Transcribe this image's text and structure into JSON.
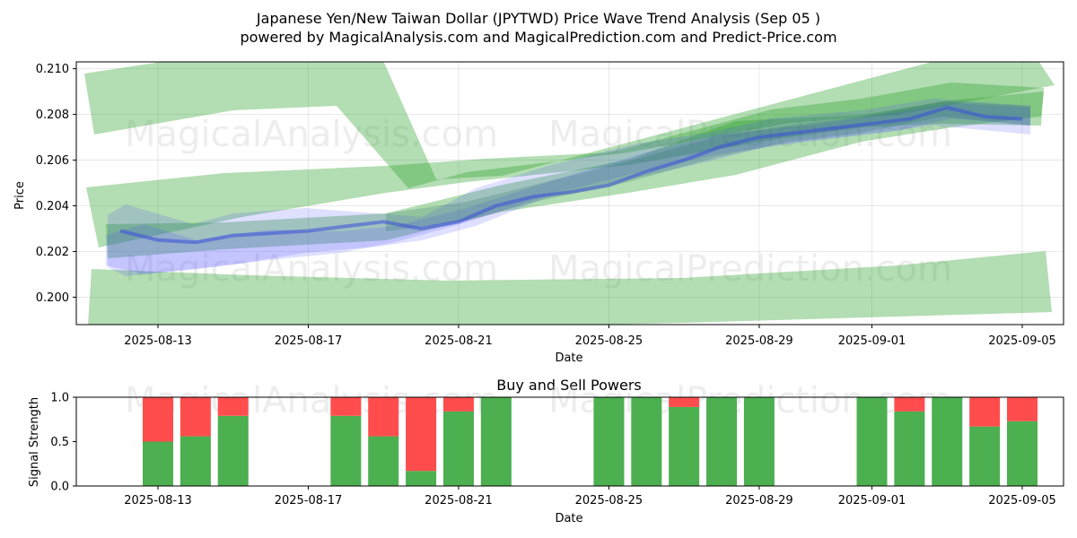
{
  "chart_data": [
    {
      "type": "line",
      "title_line1": "Japanese Yen/New Taiwan Dollar (JPYTWD) Price Wave Trend Analysis (Sep 05 )",
      "title_line2": "powered by MagicalAnalysis.com and MagicalPrediction.com and Predict-Price.com",
      "xlabel": "Date",
      "ylabel": "Price",
      "x_tick_labels": [
        "2025-08-13",
        "2025-08-17",
        "2025-08-21",
        "2025-08-25",
        "2025-08-29",
        "2025-09-01",
        "2025-09-05"
      ],
      "y_tick_labels": [
        "0.200",
        "0.202",
        "0.204",
        "0.206",
        "0.208",
        "0.210"
      ],
      "ylim": [
        0.1988,
        0.2103
      ],
      "grid": true,
      "watermark": [
        "MagicalAnalysis.com",
        "MagicalPrediction.com"
      ],
      "colors": {
        "green_band": "#2ca02c",
        "blue_wave": "#3b3bff",
        "dark_wave": "#2e6f6a"
      },
      "series": [
        {
          "x": [
            "2025-08-12",
            "2025-08-13",
            "2025-08-14",
            "2025-08-15",
            "2025-08-16",
            "2025-08-17",
            "2025-08-18",
            "2025-08-19",
            "2025-08-20",
            "2025-08-21",
            "2025-08-22",
            "2025-08-23",
            "2025-08-24",
            "2025-08-25",
            "2025-08-26",
            "2025-08-27",
            "2025-08-28",
            "2025-08-29",
            "2025-08-30",
            "2025-08-31",
            "2025-09-01",
            "2025-09-02",
            "2025-09-03",
            "2025-09-04",
            "2025-09-05"
          ],
          "values": [
            0.2029,
            0.2025,
            0.2024,
            0.2027,
            0.2028,
            0.2029,
            0.2031,
            0.2033,
            0.203,
            0.2033,
            0.204,
            0.2044,
            0.2046,
            0.2049,
            0.2055,
            0.206,
            0.2066,
            0.207,
            0.2072,
            0.2074,
            0.2076,
            0.2078,
            0.2083,
            0.2079,
            0.2078
          ]
        }
      ]
    },
    {
      "type": "bar",
      "title": "Buy and Sell Powers",
      "xlabel": "Date",
      "ylabel": "Signal Strength",
      "x_tick_labels": [
        "2025-08-13",
        "2025-08-17",
        "2025-08-21",
        "2025-08-25",
        "2025-08-29",
        "2025-09-01",
        "2025-09-05"
      ],
      "y_tick_labels": [
        "0.0",
        "0.5",
        "1.0"
      ],
      "ylim": [
        0,
        1
      ],
      "colors": {
        "buy": "#4caf50",
        "sell": "#ff4d4d"
      },
      "categories": [
        "2025-08-13",
        "2025-08-14",
        "2025-08-15",
        "2025-08-18",
        "2025-08-19",
        "2025-08-20",
        "2025-08-21",
        "2025-08-22",
        "2025-08-25",
        "2025-08-26",
        "2025-08-27",
        "2025-08-28",
        "2025-08-29",
        "2025-09-01",
        "2025-09-02",
        "2025-09-03",
        "2025-09-04",
        "2025-09-05"
      ],
      "series": [
        {
          "values": [
            0.5,
            0.56,
            0.79,
            0.79,
            0.56,
            0.17,
            0.84,
            1.0,
            1.0,
            1.0,
            0.89,
            1.0,
            1.0,
            1.0,
            0.84,
            1.0,
            0.67,
            0.73
          ]
        },
        {
          "values": [
            0.5,
            0.44,
            0.21,
            0.21,
            0.44,
            0.83,
            0.16,
            0.0,
            0.0,
            0.0,
            0.11,
            0.0,
            0.0,
            0.0,
            0.16,
            0.0,
            0.33,
            0.27
          ]
        }
      ]
    }
  ]
}
